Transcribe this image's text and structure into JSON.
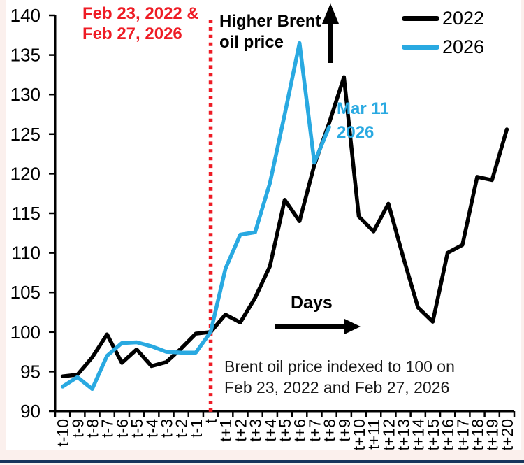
{
  "chart_data": {
    "type": "line",
    "title": "",
    "xlabel": "Days",
    "ylabel": "",
    "ylim": [
      90,
      140
    ],
    "ytick_step": 5,
    "grid": false,
    "legend_position": "top-right",
    "categories": [
      "t-10",
      "t-9",
      "t-8",
      "t-7",
      "t-6",
      "t-5",
      "t-4",
      "t-3",
      "t-2",
      "t-1",
      "t",
      "t+1",
      "t+2",
      "t+3",
      "t+4",
      "t+5",
      "t+6",
      "t+7",
      "t+8",
      "t+9",
      "t+10",
      "t+11",
      "t+12",
      "t+13",
      "t+14",
      "t+15",
      "t+16",
      "t+17",
      "t+18",
      "t+19",
      "t+20"
    ],
    "series": [
      {
        "name": "2022",
        "color": "#000000",
        "values": [
          94.4,
          94.6,
          96.8,
          99.7,
          96.1,
          97.8,
          95.7,
          96.2,
          97.9,
          99.8,
          100,
          102.2,
          101.2,
          104.3,
          108.3,
          116.7,
          114.0,
          121.1,
          126.4,
          132.2,
          114.6,
          112.7,
          116.2,
          109.5,
          103.1,
          101.3,
          110.0,
          111.0,
          119.6,
          119.2,
          125.6
        ]
      },
      {
        "name": "2026",
        "color": "#29A9E1",
        "values": [
          93.1,
          94.3,
          92.8,
          97.0,
          98.6,
          98.7,
          98.2,
          97.5,
          97.4,
          97.4,
          100,
          108.0,
          112.3,
          112.6,
          118.8,
          127.5,
          136.5,
          121.4,
          125.9,
          null,
          null,
          null,
          null,
          null,
          null,
          null,
          null,
          null,
          null,
          null,
          null
        ]
      }
    ],
    "event_line": {
      "x_category": "t",
      "color": "#EE1C25",
      "style": "square-dotted"
    }
  },
  "colors": {
    "red": "#EE1C25",
    "blue": "#29A9E1",
    "black": "#000000",
    "divider": "#17365D"
  },
  "annotations": {
    "event_dates": {
      "line1": "Feb 23, 2022 &",
      "line2": "Feb 27, 2026"
    },
    "higher_price": {
      "line1": "Higher Brent",
      "line2": "oil price"
    },
    "mar11": {
      "line1": "Mar 11",
      "line2": "2026"
    },
    "days_label": "Days",
    "caption": {
      "line1": "Brent oil price indexed to 100 on",
      "line2": "Feb 23, 2022 and Feb 27, 2026"
    }
  },
  "legend": {
    "items": [
      {
        "label": "2022",
        "color": "#000000"
      },
      {
        "label": "2026",
        "color": "#29A9E1"
      }
    ]
  }
}
